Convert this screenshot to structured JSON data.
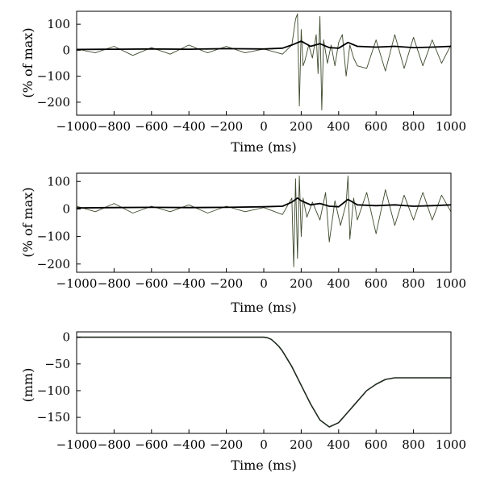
{
  "colors": {
    "raw_signal": "#3d4a2c",
    "envelope": "#000000",
    "trajectory": "#1f2a1f",
    "axes": "#000000"
  },
  "chart_data": [
    {
      "type": "line",
      "xlabel": "Time (ms)",
      "ylabel": "(% of max)",
      "xlim": [
        -1000,
        1000
      ],
      "ylim": [
        -250,
        150
      ],
      "xticks": [
        -1000,
        -800,
        -600,
        -400,
        -200,
        0,
        200,
        400,
        600,
        800,
        1000
      ],
      "yticks": [
        100,
        0,
        -100,
        -200
      ],
      "grid": false,
      "series": [
        {
          "role": "raw",
          "x": [
            -1000,
            -900,
            -800,
            -700,
            -600,
            -500,
            -400,
            -300,
            -200,
            -100,
            0,
            100,
            150,
            170,
            180,
            190,
            200,
            210,
            220,
            240,
            260,
            280,
            290,
            300,
            310,
            320,
            340,
            360,
            380,
            400,
            420,
            440,
            460,
            480,
            500,
            550,
            600,
            650,
            700,
            750,
            800,
            850,
            900,
            950,
            1000
          ],
          "y": [
            5,
            -10,
            15,
            -20,
            10,
            -15,
            20,
            -10,
            15,
            -10,
            5,
            -15,
            20,
            120,
            140,
            -215,
            80,
            -60,
            -40,
            20,
            -30,
            60,
            -90,
            130,
            -230,
            40,
            -50,
            20,
            -60,
            30,
            60,
            -100,
            20,
            -30,
            -60,
            -70,
            40,
            -80,
            60,
            -70,
            50,
            -60,
            40,
            -50,
            20
          ]
        },
        {
          "role": "envelope",
          "x": [
            -1000,
            -800,
            -600,
            -400,
            -200,
            0,
            100,
            150,
            200,
            250,
            300,
            350,
            400,
            450,
            500,
            600,
            700,
            800,
            900,
            1000
          ],
          "y": [
            3,
            4,
            5,
            4,
            6,
            5,
            8,
            20,
            35,
            15,
            25,
            10,
            8,
            30,
            15,
            12,
            15,
            10,
            12,
            15
          ]
        }
      ]
    },
    {
      "type": "line",
      "xlabel": "Time (ms)",
      "ylabel": "(% of max)",
      "xlim": [
        -1000,
        1000
      ],
      "ylim": [
        -230,
        130
      ],
      "xticks": [
        -1000,
        -800,
        -600,
        -400,
        -200,
        0,
        200,
        400,
        600,
        800,
        1000
      ],
      "yticks": [
        100,
        0,
        -100,
        -200
      ],
      "grid": false,
      "series": [
        {
          "role": "raw",
          "x": [
            -1000,
            -900,
            -800,
            -700,
            -600,
            -500,
            -400,
            -300,
            -200,
            -100,
            0,
            100,
            150,
            160,
            170,
            180,
            190,
            200,
            210,
            230,
            260,
            300,
            330,
            350,
            380,
            410,
            440,
            450,
            460,
            480,
            500,
            550,
            600,
            650,
            700,
            750,
            800,
            850,
            900,
            950,
            1000
          ],
          "y": [
            10,
            -10,
            20,
            -15,
            10,
            -10,
            15,
            -15,
            10,
            -10,
            5,
            -20,
            40,
            -210,
            110,
            -180,
            120,
            -100,
            40,
            -30,
            25,
            -40,
            60,
            -120,
            30,
            -60,
            20,
            120,
            -110,
            40,
            -40,
            60,
            -90,
            70,
            -60,
            50,
            -40,
            60,
            -40,
            50,
            -10
          ]
        },
        {
          "role": "envelope",
          "x": [
            -1000,
            -800,
            -600,
            -400,
            -200,
            0,
            100,
            150,
            180,
            200,
            250,
            300,
            350,
            400,
            450,
            500,
            600,
            700,
            800,
            900,
            1000
          ],
          "y": [
            4,
            5,
            6,
            5,
            6,
            8,
            10,
            25,
            40,
            30,
            15,
            20,
            10,
            8,
            35,
            15,
            12,
            15,
            10,
            12,
            15
          ]
        }
      ]
    },
    {
      "type": "line",
      "xlabel": "Time (ms)",
      "ylabel": "(mm)",
      "xlim": [
        -1000,
        1000
      ],
      "ylim": [
        -180,
        10
      ],
      "xticks": [
        -1000,
        -800,
        -600,
        -400,
        -200,
        0,
        200,
        400,
        600,
        800,
        1000
      ],
      "yticks": [
        0,
        -50,
        -100,
        -150
      ],
      "grid": false,
      "series": [
        {
          "role": "trajectory",
          "x": [
            -1000,
            -800,
            -600,
            -400,
            -200,
            0,
            20,
            40,
            60,
            80,
            100,
            150,
            200,
            250,
            300,
            350,
            400,
            450,
            500,
            550,
            600,
            650,
            700,
            750,
            800,
            900,
            1000
          ],
          "y": [
            0,
            0,
            0,
            0,
            0,
            0,
            -1,
            -4,
            -10,
            -17,
            -26,
            -55,
            -90,
            -125,
            -155,
            -168,
            -160,
            -140,
            -120,
            -100,
            -88,
            -79,
            -76,
            -76,
            -76,
            -76,
            -76
          ]
        }
      ]
    }
  ]
}
